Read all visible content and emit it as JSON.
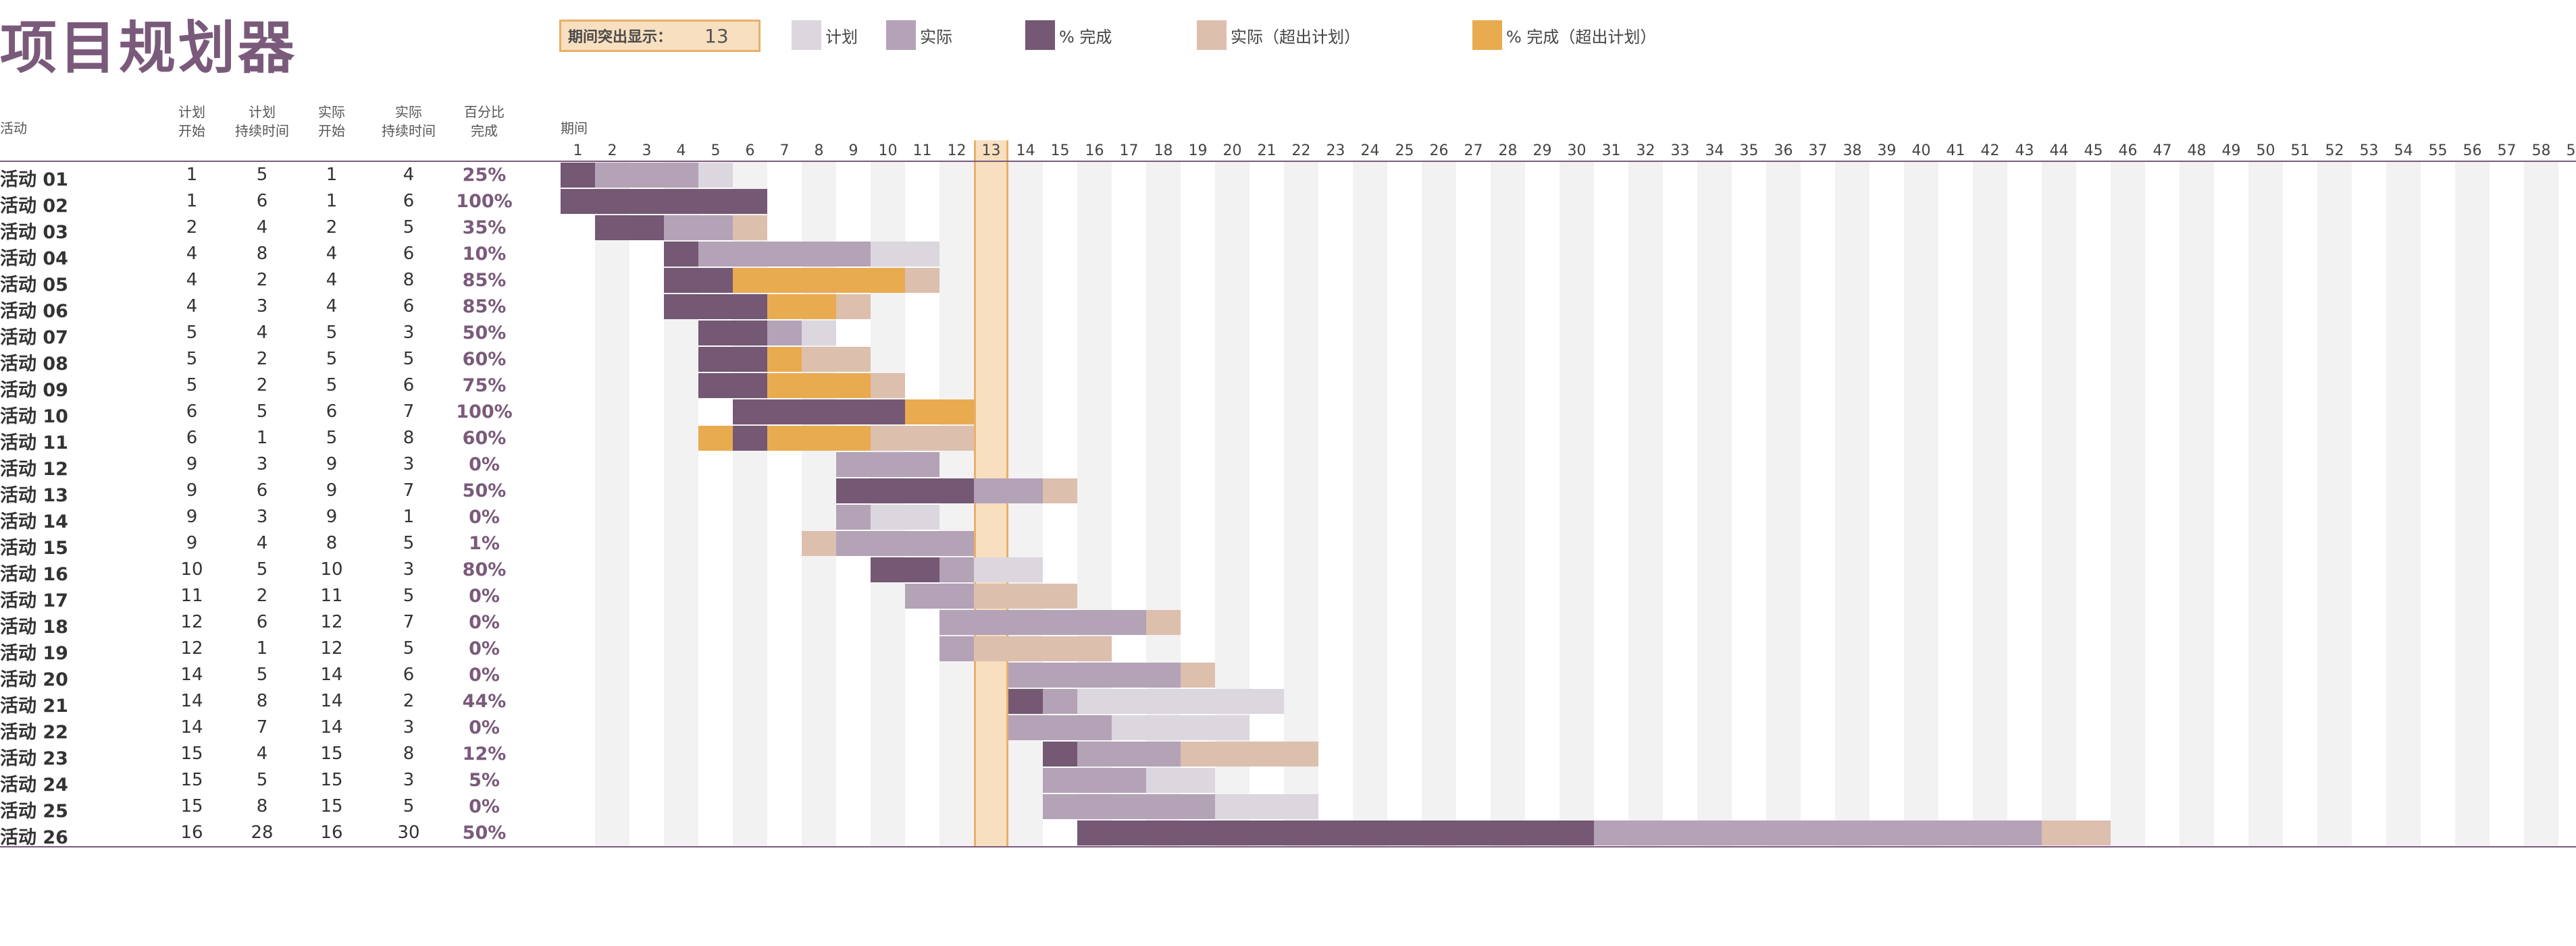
{
  "title": "项目规划器",
  "highlight": {
    "label": "期间突出显示：",
    "period": 13
  },
  "legend": [
    {
      "label": "计划",
      "color": "#dcd6de",
      "icon": "legend-plan-swatch"
    },
    {
      "label": "实际",
      "color": "#b4a2b7",
      "icon": "legend-actual-swatch"
    },
    {
      "label": "% 完成",
      "color": "#745874",
      "icon": "legend-complete-swatch"
    },
    {
      "label": "实际（超出计划）",
      "color": "#ddbfae",
      "icon": "legend-actual-over-swatch"
    },
    {
      "label": "% 完成（超出计划）",
      "color": "#e9ab50",
      "icon": "legend-complete-over-swatch"
    }
  ],
  "headers": {
    "activity": "活动",
    "plan_start": [
      "计划",
      "开始"
    ],
    "plan_duration": [
      "计划",
      "持续时间"
    ],
    "actual_start": [
      "实际",
      "开始"
    ],
    "actual_duration": [
      "实际",
      "持续时间"
    ],
    "percent": [
      "百分比",
      "完成"
    ],
    "period": "期间"
  },
  "periods": 60,
  "activities": [
    {
      "name": "活动 01",
      "ps": 1,
      "pd": 5,
      "as": 1,
      "ad": 4,
      "pct": "25%"
    },
    {
      "name": "活动 02",
      "ps": 1,
      "pd": 6,
      "as": 1,
      "ad": 6,
      "pct": "100%"
    },
    {
      "name": "活动 03",
      "ps": 2,
      "pd": 4,
      "as": 2,
      "ad": 5,
      "pct": "35%"
    },
    {
      "name": "活动 04",
      "ps": 4,
      "pd": 8,
      "as": 4,
      "ad": 6,
      "pct": "10%"
    },
    {
      "name": "活动 05",
      "ps": 4,
      "pd": 2,
      "as": 4,
      "ad": 8,
      "pct": "85%"
    },
    {
      "name": "活动 06",
      "ps": 4,
      "pd": 3,
      "as": 4,
      "ad": 6,
      "pct": "85%"
    },
    {
      "name": "活动 07",
      "ps": 5,
      "pd": 4,
      "as": 5,
      "ad": 3,
      "pct": "50%"
    },
    {
      "name": "活动 08",
      "ps": 5,
      "pd": 2,
      "as": 5,
      "ad": 5,
      "pct": "60%"
    },
    {
      "name": "活动 09",
      "ps": 5,
      "pd": 2,
      "as": 5,
      "ad": 6,
      "pct": "75%"
    },
    {
      "name": "活动 10",
      "ps": 6,
      "pd": 5,
      "as": 6,
      "ad": 7,
      "pct": "100%"
    },
    {
      "name": "活动 11",
      "ps": 6,
      "pd": 1,
      "as": 5,
      "ad": 8,
      "pct": "60%"
    },
    {
      "name": "活动 12",
      "ps": 9,
      "pd": 3,
      "as": 9,
      "ad": 3,
      "pct": "0%"
    },
    {
      "name": "活动 13",
      "ps": 9,
      "pd": 6,
      "as": 9,
      "ad": 7,
      "pct": "50%"
    },
    {
      "name": "活动 14",
      "ps": 9,
      "pd": 3,
      "as": 9,
      "ad": 1,
      "pct": "0%"
    },
    {
      "name": "活动 15",
      "ps": 9,
      "pd": 4,
      "as": 8,
      "ad": 5,
      "pct": "1%"
    },
    {
      "name": "活动 16",
      "ps": 10,
      "pd": 5,
      "as": 10,
      "ad": 3,
      "pct": "80%"
    },
    {
      "name": "活动 17",
      "ps": 11,
      "pd": 2,
      "as": 11,
      "ad": 5,
      "pct": "0%"
    },
    {
      "name": "活动 18",
      "ps": 12,
      "pd": 6,
      "as": 12,
      "ad": 7,
      "pct": "0%"
    },
    {
      "name": "活动 19",
      "ps": 12,
      "pd": 1,
      "as": 12,
      "ad": 5,
      "pct": "0%"
    },
    {
      "name": "活动 20",
      "ps": 14,
      "pd": 5,
      "as": 14,
      "ad": 6,
      "pct": "0%"
    },
    {
      "name": "活动 21",
      "ps": 14,
      "pd": 8,
      "as": 14,
      "ad": 2,
      "pct": "44%"
    },
    {
      "name": "活动 22",
      "ps": 14,
      "pd": 7,
      "as": 14,
      "ad": 3,
      "pct": "0%"
    },
    {
      "name": "活动 23",
      "ps": 15,
      "pd": 4,
      "as": 15,
      "ad": 8,
      "pct": "12%"
    },
    {
      "name": "活动 24",
      "ps": 15,
      "pd": 5,
      "as": 15,
      "ad": 3,
      "pct": "5%"
    },
    {
      "name": "活动 25",
      "ps": 15,
      "pd": 8,
      "as": 15,
      "ad": 5,
      "pct": "0%"
    },
    {
      "name": "活动 26",
      "ps": 16,
      "pd": 28,
      "as": 16,
      "ad": 30,
      "pct": "50%"
    }
  ],
  "colors": {
    "plan": "#dcd6de",
    "actual": "#b4a2b7",
    "complete": "#745874",
    "actual_over": "#ddbfae",
    "complete_over": "#e9ab50",
    "stripe": "#f2f2f2",
    "highlight": "#f8dfbf",
    "highlight_border": "#e9b068"
  }
}
